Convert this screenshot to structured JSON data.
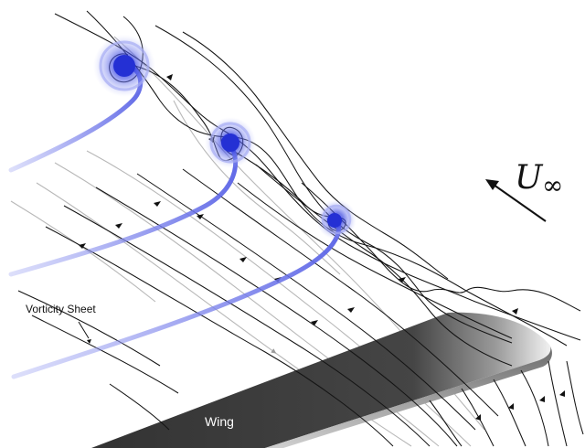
{
  "labels": {
    "vorticity_sheet": "Vorticity Sheet",
    "wing": "Wing",
    "freestream_symbol": "U",
    "freestream_subscript": "∞"
  },
  "colors": {
    "background": "#ffffff",
    "vortex_core": "#2a35d8",
    "vortex_glow": "#7b86ee",
    "sheet_band": "#8a90ee",
    "wing_dark": "#3c3c3c",
    "wing_light": "#ffffff",
    "streamline_dark": "#111111",
    "streamline_light": "#b5b5b5",
    "arrow": "#111111"
  },
  "vortex_count": 3
}
